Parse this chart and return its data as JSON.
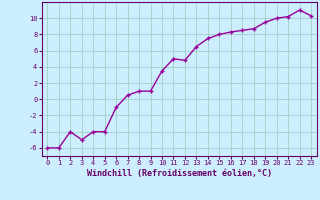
{
  "x": [
    0,
    1,
    2,
    3,
    4,
    5,
    6,
    7,
    8,
    9,
    10,
    11,
    12,
    13,
    14,
    15,
    16,
    17,
    18,
    19,
    20,
    21,
    22,
    23
  ],
  "y": [
    -6,
    -6,
    -4,
    -5,
    -4,
    -4,
    -1,
    0.5,
    1,
    1,
    3.5,
    5,
    4.8,
    6.5,
    7.5,
    8,
    8.3,
    8.5,
    8.7,
    9.5,
    10,
    10.2,
    11,
    10.3
  ],
  "line_color": "#990099",
  "marker": "+",
  "marker_size": 3.5,
  "bg_color": "#cceeff",
  "grid_color": "#99ccbb",
  "xlabel": "Windchill (Refroidissement éolien,°C)",
  "xlim_min": -0.5,
  "xlim_max": 23.5,
  "ylim_min": -7,
  "ylim_max": 12,
  "yticks": [
    -6,
    -4,
    -2,
    0,
    2,
    4,
    6,
    8,
    10
  ],
  "xticks": [
    0,
    1,
    2,
    3,
    4,
    5,
    6,
    7,
    8,
    9,
    10,
    11,
    12,
    13,
    14,
    15,
    16,
    17,
    18,
    19,
    20,
    21,
    22,
    23
  ],
  "tick_fontsize": 5.0,
  "xlabel_fontsize": 6.0,
  "line_width": 1.0,
  "text_color": "#660066",
  "markeredgewidth": 1.0
}
